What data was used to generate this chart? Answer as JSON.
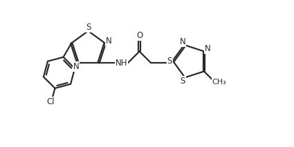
{
  "bg_color": "#ffffff",
  "line_color": "#2a2a2a",
  "lw": 1.6,
  "fs": 8.5,
  "xlim": [
    0,
    10
  ],
  "ylim": [
    0,
    5
  ],
  "figsize": [
    4.25,
    2.13
  ],
  "dpi": 100
}
